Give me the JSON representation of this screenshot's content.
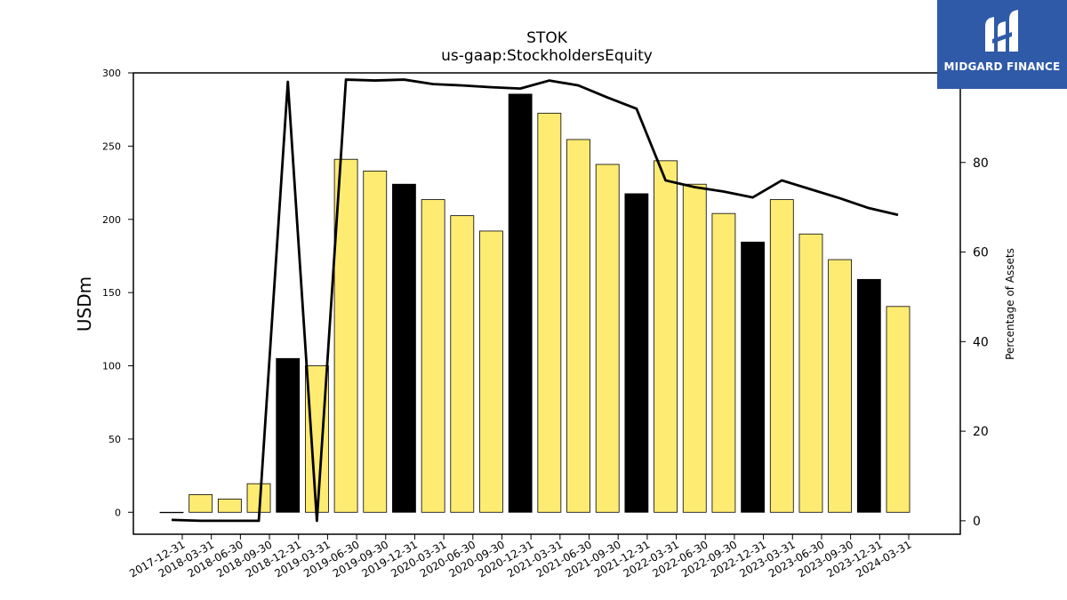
{
  "chart_data": {
    "type": "bar",
    "title": "STOK",
    "subtitle": "us-gaap:StockholdersEquity",
    "ylabel": "USDm",
    "y2label": "Percentage of Assets",
    "ylim": [
      -15,
      300
    ],
    "y2lim": [
      -3,
      100
    ],
    "yticks": [
      0,
      50,
      100,
      150,
      200,
      250,
      300
    ],
    "y2ticks": [
      0,
      20,
      40,
      60,
      80
    ],
    "categories": [
      "2017-12-31",
      "2018-03-31",
      "2018-06-30",
      "2018-09-30",
      "2018-12-31",
      "2019-03-31",
      "2019-06-30",
      "2019-09-30",
      "2019-12-31",
      "2020-03-31",
      "2020-06-30",
      "2020-09-30",
      "2020-12-31",
      "2021-03-31",
      "2021-06-30",
      "2021-09-30",
      "2021-12-31",
      "2022-03-31",
      "2022-06-30",
      "2022-09-30",
      "2022-12-31",
      "2023-03-31",
      "2023-06-30",
      "2023-09-30",
      "2023-12-31",
      "2024-03-31"
    ],
    "series": [
      {
        "type": "bar",
        "values": [
          0,
          12,
          9,
          19.5,
          105,
          100,
          241,
          233,
          224,
          213.5,
          202.5,
          192,
          285.5,
          272.5,
          254.5,
          237.5,
          217.5,
          240,
          224,
          204,
          184.5,
          213.5,
          190,
          172.5,
          159,
          140.5
        ],
        "highlight": [
          false,
          false,
          false,
          false,
          true,
          false,
          false,
          false,
          true,
          false,
          false,
          false,
          true,
          false,
          false,
          false,
          true,
          false,
          false,
          false,
          true,
          false,
          false,
          false,
          true,
          false
        ]
      },
      {
        "type": "line",
        "axis": "right",
        "values": [
          0.2,
          0,
          0,
          0,
          98,
          0,
          98.5,
          98.3,
          98.5,
          97.5,
          97.2,
          96.8,
          96.5,
          98.3,
          97.2,
          94.5,
          92,
          76,
          74.5,
          73.5,
          72.2,
          76,
          74,
          72,
          69.8,
          68.3
        ]
      }
    ],
    "colors": {
      "bar": "#feec72",
      "bar_highlight": "#000000",
      "line": "#000000"
    },
    "grid": false,
    "legend": "none"
  },
  "logo": {
    "text": "MIDGARD FINANCE",
    "background": "#2f5aa8"
  }
}
